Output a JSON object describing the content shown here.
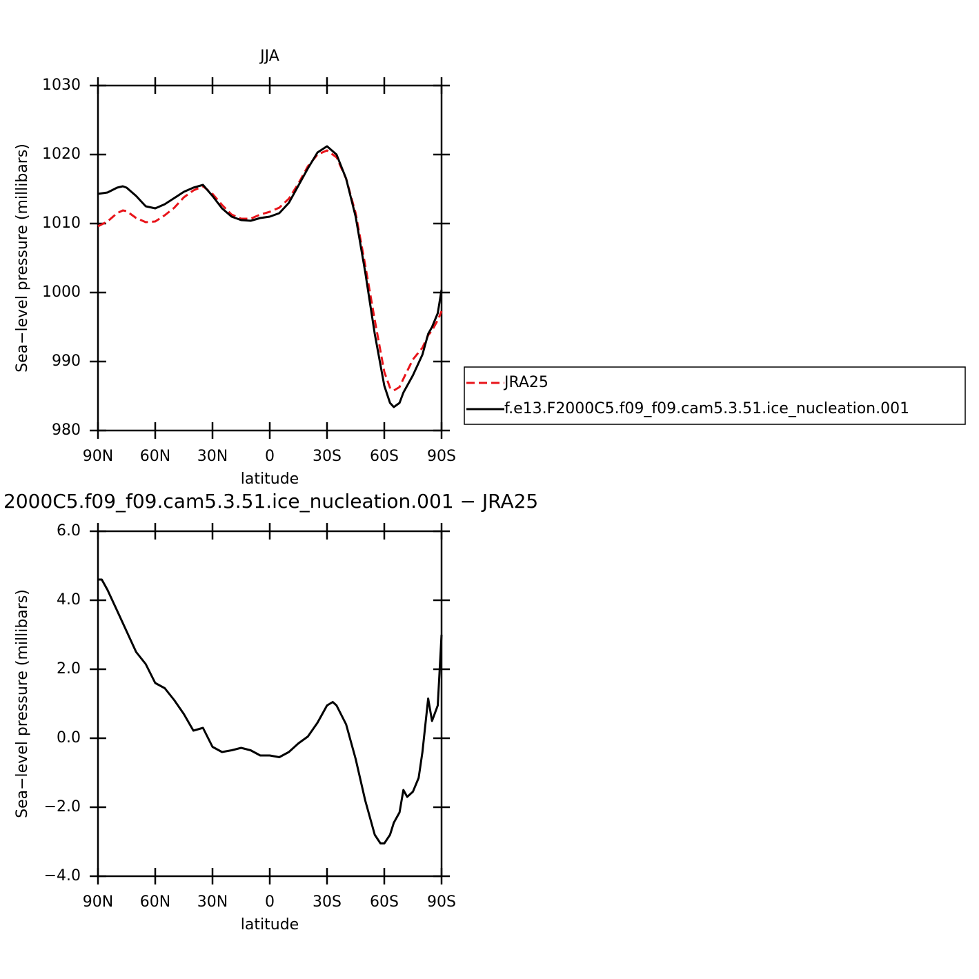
{
  "chart_data": [
    {
      "type": "line",
      "title": "JJA",
      "x_label": "latitude",
      "y_label": "Sea−level pressure (millibars)",
      "x": [
        90,
        85,
        80,
        77,
        75,
        70,
        65,
        60,
        55,
        50,
        45,
        40,
        35,
        30,
        25,
        20,
        15,
        10,
        5,
        0,
        -5,
        -10,
        -15,
        -20,
        -25,
        -30,
        -35,
        -40,
        -45,
        -50,
        -55,
        -60,
        -63,
        -65,
        -68,
        -70,
        -75,
        -80,
        -83,
        -85,
        -88,
        -90
      ],
      "series": [
        {
          "name": "JRA25",
          "color": "#e8141a",
          "linestyle": "dashed",
          "values": [
            1009.6,
            1010.3,
            1011.5,
            1011.9,
            1011.8,
            1010.8,
            1010.2,
            1010.3,
            1011.2,
            1012.3,
            1013.8,
            1014.8,
            1015.4,
            1014.3,
            1012.7,
            1011.3,
            1010.7,
            1010.7,
            1011.3,
            1011.7,
            1012.3,
            1013.6,
            1015.8,
            1018.3,
            1020.0,
            1020.6,
            1019.6,
            1016.5,
            1011.5,
            1004.0,
            996.0,
            988.5,
            986.2,
            985.8,
            986.3,
            987.5,
            990.3,
            992.0,
            993.8,
            994.5,
            996.0,
            997.3
          ]
        },
        {
          "name": "f.e13.F2000C5.f09_f09.cam5.3.51.ice_nucleation.001",
          "color": "#000000",
          "linestyle": "solid",
          "values": [
            1014.3,
            1014.5,
            1015.2,
            1015.4,
            1015.2,
            1014.0,
            1012.5,
            1012.2,
            1012.8,
            1013.7,
            1014.6,
            1015.2,
            1015.6,
            1014.0,
            1012.2,
            1011.0,
            1010.5,
            1010.4,
            1010.8,
            1011.0,
            1011.5,
            1013.0,
            1015.5,
            1018.0,
            1020.3,
            1021.2,
            1020.0,
            1016.5,
            1011.0,
            1003.0,
            994.0,
            986.5,
            984.0,
            983.4,
            984.0,
            985.5,
            988.0,
            991.0,
            994.0,
            995.0,
            997.0,
            1000.4
          ]
        }
      ],
      "xlim": [
        90,
        -90
      ],
      "xticks": [
        {
          "value": 90,
          "label": "90N"
        },
        {
          "value": 60,
          "label": "60N"
        },
        {
          "value": 30,
          "label": "30N"
        },
        0,
        {
          "value": -30,
          "label": "30S"
        },
        {
          "value": -60,
          "label": "60S"
        },
        {
          "value": -90,
          "label": "90S"
        }
      ],
      "ylim": [
        980,
        1030
      ],
      "yticks": [
        980,
        990,
        1000,
        1010,
        1020,
        1030
      ],
      "legend": "right"
    },
    {
      "type": "line",
      "title": "2000C5.f09_f09.cam5.3.51.ice_nucleation.001 − JRA25",
      "x_label": "latitude",
      "y_label": "Sea−level pressure (millibars)",
      "x": [
        90,
        88,
        85,
        80,
        75,
        70,
        65,
        60,
        55,
        50,
        45,
        40,
        35,
        30,
        25,
        20,
        15,
        10,
        5,
        0,
        -5,
        -10,
        -15,
        -20,
        -25,
        -30,
        -33,
        -35,
        -40,
        -45,
        -50,
        -55,
        -58,
        -60,
        -63,
        -65,
        -68,
        -70,
        -72,
        -75,
        -78,
        -80,
        -83,
        -85,
        -88,
        -90
      ],
      "values": [
        4.6,
        4.6,
        4.3,
        3.7,
        3.1,
        2.5,
        2.15,
        1.6,
        1.45,
        1.1,
        0.7,
        0.22,
        0.3,
        -0.25,
        -0.4,
        -0.35,
        -0.28,
        -0.35,
        -0.5,
        -0.5,
        -0.55,
        -0.4,
        -0.15,
        0.05,
        0.45,
        0.95,
        1.05,
        0.95,
        0.4,
        -0.6,
        -1.8,
        -2.8,
        -3.05,
        -3.05,
        -2.8,
        -2.45,
        -2.15,
        -1.5,
        -1.7,
        -1.55,
        -1.15,
        -0.4,
        1.15,
        0.5,
        0.95,
        3.0
      ],
      "color": "#000000",
      "xlim": [
        90,
        -90
      ],
      "xticks": [
        {
          "value": 90,
          "label": "90N"
        },
        {
          "value": 60,
          "label": "60N"
        },
        {
          "value": 30,
          "label": "30N"
        },
        0,
        {
          "value": -30,
          "label": "30S"
        },
        {
          "value": -60,
          "label": "60S"
        },
        {
          "value": -90,
          "label": "90S"
        }
      ],
      "ylim": [
        -4,
        6
      ],
      "yticks": [
        {
          "value": -4,
          "label": "−4.0"
        },
        {
          "value": -2,
          "label": "−2.0"
        },
        {
          "value": 0,
          "label": "0.0"
        },
        {
          "value": 2,
          "label": "2.0"
        },
        {
          "value": 4,
          "label": "4.0"
        },
        {
          "value": 6,
          "label": "6.0"
        }
      ]
    }
  ]
}
